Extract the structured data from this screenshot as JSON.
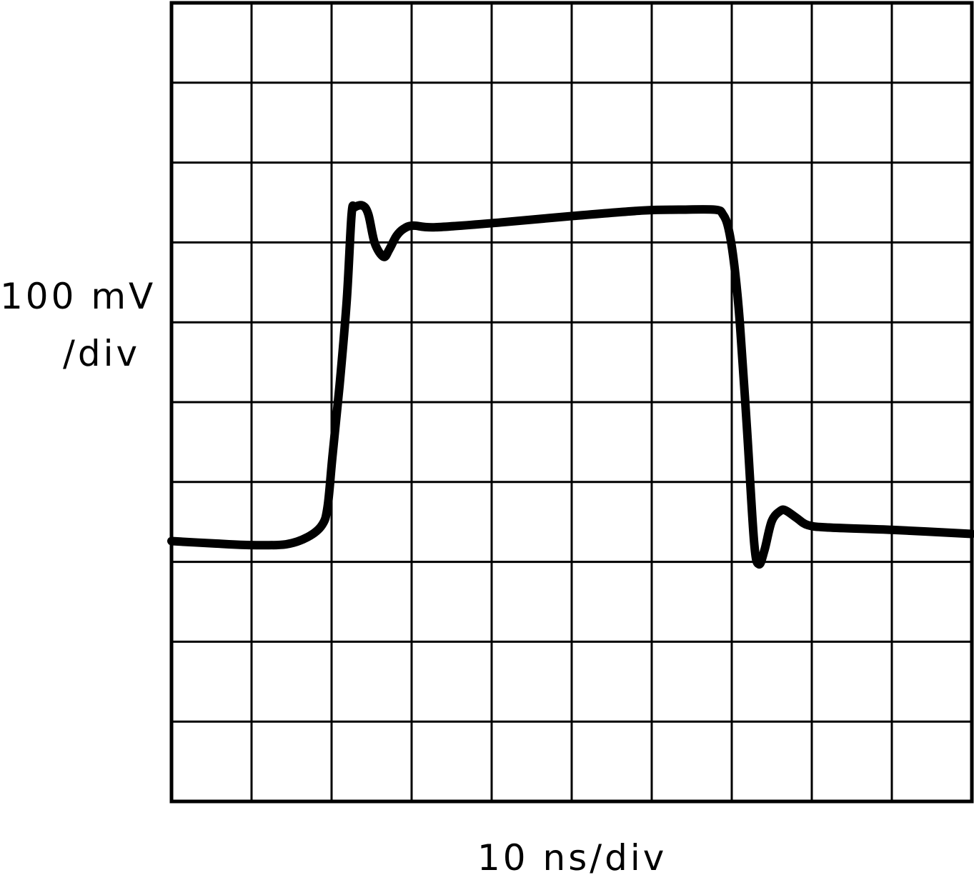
{
  "chart_data": {
    "type": "line",
    "title": "",
    "ylabel_line1": "100 mV",
    "ylabel_line2": "/div",
    "xlabel": "10 ns/div",
    "x_units": "div",
    "y_units": "div",
    "xlim": [
      0,
      10
    ],
    "ylim": [
      0,
      10
    ],
    "grid": true,
    "grid_divisions": {
      "x": 10,
      "y": 10
    },
    "line_color": "#000000",
    "series": [
      {
        "x": [
          0,
          0.54,
          1.0,
          1.43,
          1.7,
          1.88,
          1.95,
          2.01,
          2.1,
          2.19,
          2.25,
          2.29,
          2.39,
          2.46,
          2.54,
          2.65,
          2.72,
          2.81,
          2.9,
          3.02,
          3.3,
          4.11,
          5.0,
          5.89,
          6.34,
          6.79,
          6.89,
          6.96,
          7.03,
          7.1,
          7.19,
          7.28,
          7.34,
          7.41,
          7.5,
          7.61,
          7.68,
          7.81,
          7.95,
          8.21,
          9.02,
          10.0
        ],
        "y": [
          3.26,
          3.23,
          3.21,
          3.22,
          3.31,
          3.46,
          3.69,
          4.31,
          5.21,
          6.28,
          7.35,
          7.44,
          7.46,
          7.35,
          6.99,
          6.82,
          6.91,
          7.08,
          7.17,
          7.21,
          7.19,
          7.25,
          7.33,
          7.4,
          7.41,
          7.41,
          7.35,
          7.17,
          6.73,
          6.01,
          4.67,
          3.24,
          2.97,
          3.15,
          3.51,
          3.64,
          3.64,
          3.55,
          3.46,
          3.43,
          3.4,
          3.35
        ]
      }
    ]
  }
}
